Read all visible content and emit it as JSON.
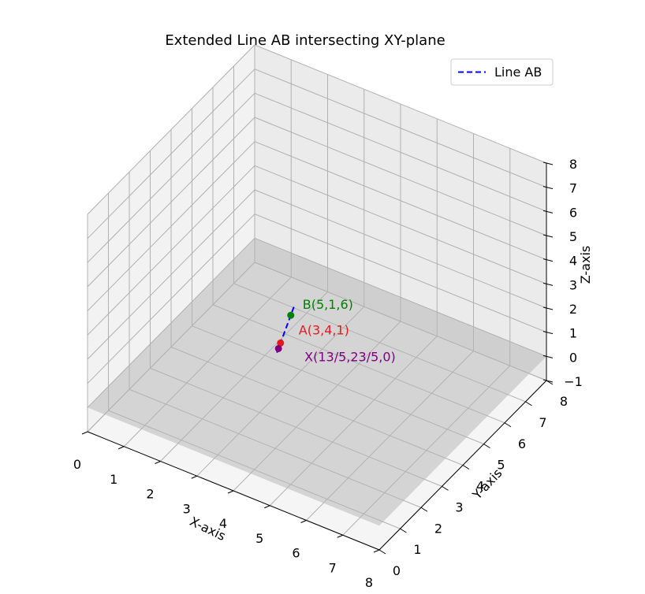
{
  "chart_data": {
    "type": "line3d",
    "title": "Extended Line AB intersecting XY-plane",
    "xlabel": "X-axis",
    "ylabel": "Y-axis",
    "zlabel": "Z-axis",
    "xlim": [
      0,
      8
    ],
    "ylim": [
      0,
      8
    ],
    "zlim": [
      -1,
      8
    ],
    "x_ticks": [
      "0",
      "1",
      "2",
      "3",
      "4",
      "5",
      "6",
      "7",
      "8"
    ],
    "y_ticks": [
      "0",
      "1",
      "2",
      "3",
      "4",
      "5",
      "6",
      "7",
      "8"
    ],
    "z_ticks": [
      "−1",
      "0",
      "1",
      "2",
      "3",
      "4",
      "5",
      "6",
      "7",
      "8"
    ],
    "grid": true,
    "legend_position": "top-right",
    "plane": {
      "z": 0,
      "color": "#d3d3d3"
    },
    "series": [
      {
        "name": "Line AB",
        "style": "dashed",
        "color": "#0000ff",
        "x": [
          2.3,
          5.7
        ],
        "y": [
          5.05,
          -0.05
        ],
        "z": [
          -0.75,
          7.75
        ]
      }
    ],
    "points": [
      {
        "label": "A(3,4,1)",
        "x": 3,
        "y": 4,
        "z": 1,
        "color": "#e41a1c"
      },
      {
        "label": "B(5,1,6)",
        "x": 5,
        "y": 1,
        "z": 6,
        "color": "#008000"
      },
      {
        "label": "X(13/5,23/5,0)",
        "x": 2.6,
        "y": 4.6,
        "z": 0,
        "color": "#800080"
      }
    ]
  }
}
